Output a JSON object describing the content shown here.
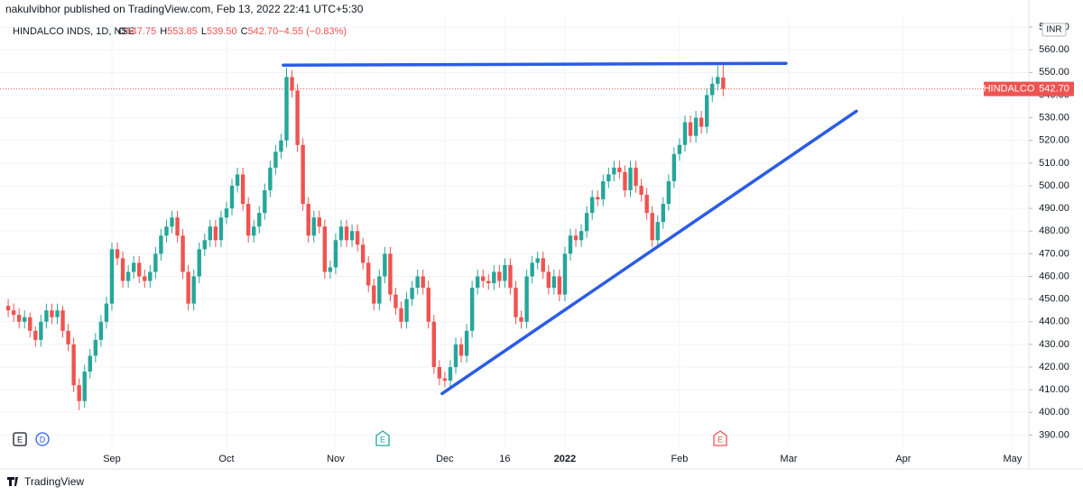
{
  "header": {
    "publisher": "nakulvibhor published on TradingView.com, Feb 13, 2022 22:41 UTC+5:30",
    "footer": "TradingView"
  },
  "chart_data": {
    "type": "candlestick",
    "symbol": "HINDALCO INDS, 1D, NSE",
    "legend": [
      {
        "key": "O",
        "value": "547.75"
      },
      {
        "key": "H",
        "value": "553.85"
      },
      {
        "key": "L",
        "value": "539.50"
      },
      {
        "key": "C",
        "value": "542.70"
      },
      {
        "key": "",
        "value": "−4.55 (−0.83%)"
      }
    ],
    "currency": "INR",
    "up_color": "#26a69a",
    "down_color": "#ef5350",
    "trendline_color": "#2b5ce6",
    "grid": true,
    "xlim": [
      -1.5,
      187
    ],
    "xticks": [
      {
        "value": 19,
        "label": "Sep"
      },
      {
        "value": 40,
        "label": "Oct"
      },
      {
        "value": 60,
        "label": "Nov"
      },
      {
        "value": 80,
        "label": "Dec"
      },
      {
        "value": 91,
        "label": "16"
      },
      {
        "value": 102,
        "label": "2022"
      },
      {
        "value": 123,
        "label": "Feb"
      },
      {
        "value": 143,
        "label": "Mar"
      },
      {
        "value": 164,
        "label": "Apr"
      },
      {
        "value": 184,
        "label": "May"
      }
    ],
    "ylim": [
      385,
      574
    ],
    "yticks": [
      {
        "value": 390,
        "label": "390.00"
      },
      {
        "value": 400,
        "label": "400.00"
      },
      {
        "value": 410,
        "label": "410.00"
      },
      {
        "value": 420,
        "label": "420.00"
      },
      {
        "value": 430,
        "label": "430.00"
      },
      {
        "value": 440,
        "label": "440.00"
      },
      {
        "value": 450,
        "label": "450.00"
      },
      {
        "value": 460,
        "label": "460.00"
      },
      {
        "value": 470,
        "label": "470.00"
      },
      {
        "value": 480,
        "label": "480.00"
      },
      {
        "value": 490,
        "label": "490.00"
      },
      {
        "value": 500,
        "label": "500.00"
      },
      {
        "value": 510,
        "label": "510.00"
      },
      {
        "value": 520,
        "label": "520.00"
      },
      {
        "value": 530,
        "label": "530.00"
      },
      {
        "value": 540,
        "label": "540.00"
      },
      {
        "value": 550,
        "label": "550.00"
      },
      {
        "value": 560,
        "label": "560.00"
      },
      {
        "value": 570,
        "label": "570.00"
      }
    ],
    "last_price": {
      "name": "HINDALCO",
      "value": 542.7,
      "label": "542.70"
    },
    "trendlines": [
      {
        "x": [
          50.4,
          142.5
        ],
        "y": [
          553.2,
          554
        ]
      },
      {
        "x": [
          79.5,
          155.4
        ],
        "y": [
          408.3,
          532.9
        ]
      }
    ],
    "events": [
      {
        "label": "E",
        "kind": "earnings-past"
      },
      {
        "label": "D",
        "kind": "dividend"
      },
      {
        "label": "E",
        "kind": "earnings-green"
      },
      {
        "label": "E",
        "kind": "earnings-red"
      }
    ],
    "ohlc": [
      [
        447,
        450,
        442,
        445
      ],
      [
        445,
        448,
        440,
        443
      ],
      [
        443,
        446,
        437,
        440
      ],
      [
        440,
        445,
        437,
        442
      ],
      [
        442,
        444,
        433,
        436
      ],
      [
        436,
        438,
        429,
        432
      ],
      [
        432,
        443,
        429,
        440
      ],
      [
        440,
        448,
        437,
        445
      ],
      [
        445,
        448,
        439,
        442
      ],
      [
        442,
        448,
        439,
        445
      ],
      [
        445,
        447,
        433,
        436
      ],
      [
        436,
        439,
        427,
        430
      ],
      [
        430,
        433,
        409,
        412
      ],
      [
        412,
        415,
        401,
        405
      ],
      [
        405,
        421,
        402,
        418
      ],
      [
        418,
        428,
        415,
        425
      ],
      [
        425,
        435,
        422,
        432
      ],
      [
        432,
        443,
        429,
        440
      ],
      [
        440,
        451,
        437,
        448
      ],
      [
        448,
        475,
        445,
        472
      ],
      [
        472,
        475,
        465,
        468
      ],
      [
        468,
        471,
        455,
        458
      ],
      [
        458,
        465,
        455,
        462
      ],
      [
        462,
        469,
        459,
        466
      ],
      [
        466,
        469,
        457,
        460
      ],
      [
        460,
        463,
        455,
        458
      ],
      [
        458,
        465,
        455,
        462
      ],
      [
        462,
        473,
        459,
        470
      ],
      [
        470,
        481,
        467,
        478
      ],
      [
        478,
        485,
        475,
        482
      ],
      [
        482,
        489,
        479,
        486
      ],
      [
        486,
        489,
        475,
        478
      ],
      [
        478,
        481,
        459,
        462
      ],
      [
        462,
        465,
        445,
        448
      ],
      [
        448,
        463,
        445,
        460
      ],
      [
        460,
        475,
        457,
        472
      ],
      [
        472,
        479,
        469,
        476
      ],
      [
        476,
        485,
        473,
        482
      ],
      [
        482,
        485,
        473,
        476
      ],
      [
        476,
        489,
        473,
        486
      ],
      [
        486,
        493,
        483,
        490
      ],
      [
        490,
        503,
        487,
        500
      ],
      [
        500,
        508,
        497,
        505
      ],
      [
        505,
        508,
        489,
        492
      ],
      [
        492,
        495,
        475,
        478
      ],
      [
        478,
        485,
        475,
        482
      ],
      [
        482,
        491,
        479,
        488
      ],
      [
        488,
        501,
        485,
        498
      ],
      [
        498,
        511,
        495,
        508
      ],
      [
        508,
        518,
        505,
        515
      ],
      [
        515,
        523,
        512,
        520
      ],
      [
        520,
        552,
        517,
        548
      ],
      [
        548,
        551,
        539,
        542
      ],
      [
        542,
        545,
        515,
        518
      ],
      [
        518,
        521,
        489,
        492
      ],
      [
        492,
        495,
        475,
        478
      ],
      [
        478,
        489,
        475,
        486
      ],
      [
        486,
        489,
        479,
        482
      ],
      [
        482,
        485,
        459,
        462
      ],
      [
        462,
        467,
        459,
        464
      ],
      [
        464,
        479,
        461,
        476
      ],
      [
        476,
        485,
        473,
        482
      ],
      [
        482,
        485,
        473,
        476
      ],
      [
        476,
        483,
        473,
        480
      ],
      [
        480,
        483,
        471,
        474
      ],
      [
        474,
        477,
        463,
        466
      ],
      [
        466,
        469,
        453,
        456
      ],
      [
        456,
        459,
        445,
        448
      ],
      [
        448,
        463,
        445,
        460
      ],
      [
        460,
        473,
        457,
        470
      ],
      [
        470,
        473,
        449,
        452
      ],
      [
        452,
        455,
        443,
        446
      ],
      [
        446,
        449,
        437,
        440
      ],
      [
        440,
        453,
        437,
        450
      ],
      [
        450,
        458,
        447,
        455
      ],
      [
        455,
        463,
        452,
        460
      ],
      [
        460,
        463,
        452,
        455
      ],
      [
        455,
        458,
        437,
        440
      ],
      [
        440,
        443,
        417,
        420
      ],
      [
        420,
        423,
        412,
        415
      ],
      [
        415,
        418,
        411,
        414
      ],
      [
        414,
        423,
        411,
        420
      ],
      [
        420,
        433,
        417,
        430
      ],
      [
        430,
        433,
        422,
        425
      ],
      [
        425,
        439,
        422,
        436
      ],
      [
        436,
        458,
        433,
        455
      ],
      [
        455,
        463,
        452,
        460
      ],
      [
        460,
        463,
        455,
        458
      ],
      [
        458,
        461,
        454,
        457
      ],
      [
        457,
        465,
        454,
        462
      ],
      [
        462,
        465,
        455,
        458
      ],
      [
        458,
        468,
        455,
        465
      ],
      [
        465,
        468,
        452,
        455
      ],
      [
        455,
        458,
        439,
        442
      ],
      [
        442,
        445,
        437,
        440
      ],
      [
        440,
        463,
        437,
        460
      ],
      [
        460,
        469,
        457,
        466
      ],
      [
        466,
        471,
        463,
        468
      ],
      [
        468,
        471,
        459,
        462
      ],
      [
        462,
        465,
        452,
        455
      ],
      [
        455,
        463,
        452,
        460
      ],
      [
        460,
        463,
        449,
        452
      ],
      [
        452,
        473,
        449,
        470
      ],
      [
        470,
        481,
        467,
        478
      ],
      [
        478,
        481,
        473,
        476
      ],
      [
        476,
        483,
        473,
        480
      ],
      [
        480,
        491,
        477,
        488
      ],
      [
        488,
        498,
        485,
        495
      ],
      [
        495,
        498,
        491,
        494
      ],
      [
        494,
        505,
        491,
        502
      ],
      [
        502,
        508,
        499,
        505
      ],
      [
        505,
        511,
        502,
        508
      ],
      [
        508,
        511,
        503,
        506
      ],
      [
        506,
        509,
        495,
        498
      ],
      [
        498,
        511,
        495,
        508
      ],
      [
        508,
        511,
        497,
        500
      ],
      [
        500,
        503,
        493,
        496
      ],
      [
        496,
        499,
        485,
        488
      ],
      [
        488,
        491,
        473,
        476
      ],
      [
        476,
        487,
        473,
        484
      ],
      [
        484,
        495,
        481,
        492
      ],
      [
        492,
        505,
        489,
        502
      ],
      [
        502,
        517,
        499,
        514
      ],
      [
        514,
        521,
        511,
        518
      ],
      [
        518,
        531,
        515,
        528
      ],
      [
        528,
        531,
        519,
        522
      ],
      [
        522,
        533,
        519,
        530
      ],
      [
        530,
        533,
        523,
        526
      ],
      [
        526,
        543,
        523,
        540
      ],
      [
        540,
        548,
        537,
        545
      ],
      [
        545,
        553,
        542,
        548
      ],
      [
        547.75,
        553.85,
        539.5,
        542.7
      ]
    ]
  }
}
